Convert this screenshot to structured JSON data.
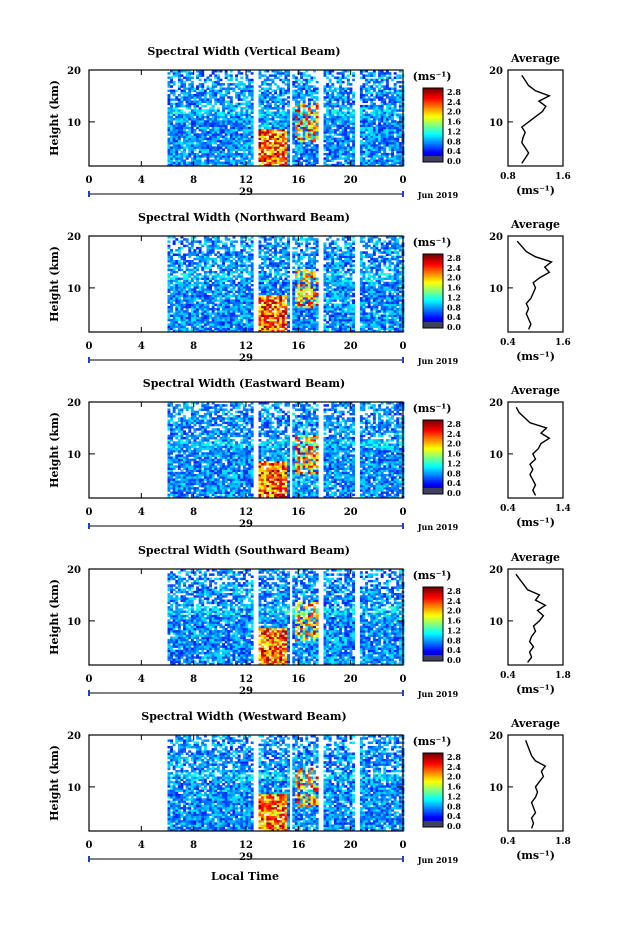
{
  "figure": {
    "xlabel_bottom": "Local Time",
    "date_label": "Jun 2019",
    "day_label": "29",
    "ylabel": "Height (km)",
    "colorbar_unit": "(ms⁻¹)",
    "avg_title": "Average",
    "avg_xlabel": "(ms⁻¹)"
  },
  "chart_data": [
    {
      "type": "heatmap",
      "title": "Spectral Width (Vertical Beam)",
      "xlabel": "",
      "ylabel": "Height (km)",
      "x_ticks": [
        "0",
        "4",
        "8",
        "12",
        "16",
        "20",
        "0"
      ],
      "xlim": [
        0,
        24
      ],
      "ylim": [
        1.5,
        20
      ],
      "y_ticks": [
        "20",
        "10"
      ],
      "colorbar": {
        "ticks": [
          "2.8",
          "2.4",
          "2.0",
          "1.6",
          "1.2",
          "0.8",
          "0.4",
          "0.0"
        ],
        "range": [
          0,
          3.0
        ],
        "unit": "(ms⁻¹)"
      },
      "data_start_hour": 6.0,
      "gaps_hours": [
        [
          12.4,
          12.8
        ],
        [
          15.2,
          15.5
        ],
        [
          17.5,
          17.8
        ],
        [
          20.2,
          20.6
        ]
      ],
      "average": {
        "title": "Average",
        "xlim": [
          0.8,
          1.6
        ],
        "x_ticks": [
          "0.8",
          "1.6"
        ],
        "y_ticks": [
          "20",
          "10"
        ],
        "height": [
          2,
          3,
          4,
          5,
          6,
          7,
          8,
          9,
          10,
          11,
          12,
          13,
          14,
          15,
          16,
          17,
          18,
          19
        ],
        "value": [
          1.0,
          1.05,
          1.1,
          1.05,
          1.0,
          1.02,
          1.05,
          1.0,
          1.1,
          1.2,
          1.3,
          1.35,
          1.25,
          1.4,
          1.2,
          1.1,
          1.05,
          1.0
        ]
      }
    },
    {
      "type": "heatmap",
      "title": "Spectral Width (Northward Beam)",
      "xlabel": "",
      "ylabel": "Height (km)",
      "x_ticks": [
        "0",
        "4",
        "8",
        "12",
        "16",
        "20",
        "0"
      ],
      "xlim": [
        0,
        24
      ],
      "ylim": [
        1.5,
        20
      ],
      "y_ticks": [
        "20",
        "10"
      ],
      "colorbar": {
        "ticks": [
          "2.8",
          "2.4",
          "2.0",
          "1.6",
          "1.2",
          "0.8",
          "0.4",
          "0.0"
        ],
        "range": [
          0,
          3.0
        ],
        "unit": "(ms⁻¹)"
      },
      "data_start_hour": 6.0,
      "gaps_hours": [
        [
          12.4,
          12.8
        ],
        [
          15.2,
          15.5
        ],
        [
          17.5,
          17.8
        ],
        [
          20.2,
          20.6
        ]
      ],
      "average": {
        "title": "Average",
        "xlim": [
          0.4,
          1.6
        ],
        "x_ticks": [
          "0.4",
          "1.6"
        ],
        "y_ticks": [
          "20",
          "10"
        ],
        "height": [
          2,
          3,
          4,
          5,
          6,
          7,
          8,
          9,
          10,
          11,
          12,
          13,
          14,
          15,
          16,
          17,
          18,
          19
        ],
        "value": [
          0.85,
          0.9,
          0.85,
          0.8,
          0.85,
          0.8,
          0.9,
          0.95,
          1.0,
          0.95,
          1.1,
          1.3,
          1.2,
          1.35,
          1.0,
          0.8,
          0.7,
          0.6
        ]
      }
    },
    {
      "type": "heatmap",
      "title": "Spectral Width (Eastward Beam)",
      "xlabel": "",
      "ylabel": "Height (km)",
      "x_ticks": [
        "0",
        "4",
        "8",
        "12",
        "16",
        "20",
        "0"
      ],
      "xlim": [
        0,
        24
      ],
      "ylim": [
        1.5,
        20
      ],
      "y_ticks": [
        "20",
        "10"
      ],
      "colorbar": {
        "ticks": [
          "2.8",
          "2.4",
          "2.0",
          "1.6",
          "1.2",
          "0.8",
          "0.4",
          "0.0"
        ],
        "range": [
          0,
          3.0
        ],
        "unit": "(ms⁻¹)"
      },
      "data_start_hour": 6.0,
      "gaps_hours": [
        [
          12.4,
          12.8
        ],
        [
          15.2,
          15.5
        ],
        [
          17.5,
          17.8
        ],
        [
          20.2,
          20.6
        ]
      ],
      "average": {
        "title": "Average",
        "xlim": [
          0.4,
          1.4
        ],
        "x_ticks": [
          "0.4",
          "1.4"
        ],
        "y_ticks": [
          "20",
          "10"
        ],
        "height": [
          2,
          3,
          4,
          5,
          6,
          7,
          8,
          9,
          10,
          11,
          12,
          13,
          14,
          15,
          16,
          17,
          18,
          19
        ],
        "value": [
          0.9,
          0.85,
          0.9,
          0.85,
          0.8,
          0.85,
          0.8,
          0.9,
          0.85,
          0.95,
          1.0,
          1.15,
          1.0,
          1.1,
          0.8,
          0.7,
          0.6,
          0.55
        ]
      }
    },
    {
      "type": "heatmap",
      "title": "Spectral Width (Southward Beam)",
      "xlabel": "",
      "ylabel": "Height (km)",
      "x_ticks": [
        "0",
        "4",
        "8",
        "12",
        "16",
        "20",
        "0"
      ],
      "xlim": [
        0,
        24
      ],
      "ylim": [
        1.5,
        20
      ],
      "y_ticks": [
        "20",
        "10"
      ],
      "colorbar": {
        "ticks": [
          "2.8",
          "2.4",
          "2.0",
          "1.6",
          "1.2",
          "0.8",
          "0.4",
          "0.0"
        ],
        "range": [
          0,
          3.0
        ],
        "unit": "(ms⁻¹)"
      },
      "data_start_hour": 6.0,
      "gaps_hours": [
        [
          12.4,
          12.8
        ],
        [
          15.2,
          15.5
        ],
        [
          17.5,
          17.8
        ],
        [
          20.2,
          20.6
        ]
      ],
      "average": {
        "title": "Average",
        "xlim": [
          0.4,
          1.8
        ],
        "x_ticks": [
          "0.4",
          "1.8"
        ],
        "y_ticks": [
          "20",
          "10"
        ],
        "height": [
          2,
          3,
          4,
          5,
          6,
          7,
          8,
          9,
          10,
          11,
          12,
          13,
          14,
          15,
          16,
          17,
          18,
          19
        ],
        "value": [
          0.9,
          1.0,
          0.95,
          1.05,
          0.95,
          1.0,
          1.1,
          1.05,
          1.2,
          1.3,
          1.15,
          1.35,
          1.1,
          1.2,
          0.9,
          0.8,
          0.7,
          0.6
        ]
      }
    },
    {
      "type": "heatmap",
      "title": "Spectral Width (Westward Beam)",
      "xlabel": "Local Time",
      "ylabel": "Height (km)",
      "x_ticks": [
        "0",
        "4",
        "8",
        "12",
        "16",
        "20",
        "0"
      ],
      "xlim": [
        0,
        24
      ],
      "ylim": [
        1.5,
        20
      ],
      "y_ticks": [
        "20",
        "10"
      ],
      "colorbar": {
        "ticks": [
          "2.8",
          "2.4",
          "2.0",
          "1.6",
          "1.2",
          "0.8",
          "0.4",
          "0.0"
        ],
        "range": [
          0,
          3.0
        ],
        "unit": "(ms⁻¹)"
      },
      "data_start_hour": 6.0,
      "gaps_hours": [
        [
          12.4,
          12.8
        ],
        [
          15.2,
          15.5
        ],
        [
          17.5,
          17.8
        ],
        [
          20.2,
          20.6
        ]
      ],
      "average": {
        "title": "Average",
        "xlim": [
          0.4,
          1.8
        ],
        "x_ticks": [
          "0.4",
          "1.8"
        ],
        "y_ticks": [
          "20",
          "10"
        ],
        "height": [
          2,
          3,
          4,
          5,
          6,
          7,
          8,
          9,
          10,
          11,
          12,
          13,
          14,
          15,
          16,
          17,
          18,
          19
        ],
        "value": [
          1.0,
          1.05,
          1.0,
          1.1,
          1.05,
          1.0,
          1.1,
          1.15,
          1.1,
          1.2,
          1.3,
          1.25,
          1.35,
          1.1,
          1.0,
          0.95,
          0.9,
          0.85
        ]
      }
    }
  ]
}
